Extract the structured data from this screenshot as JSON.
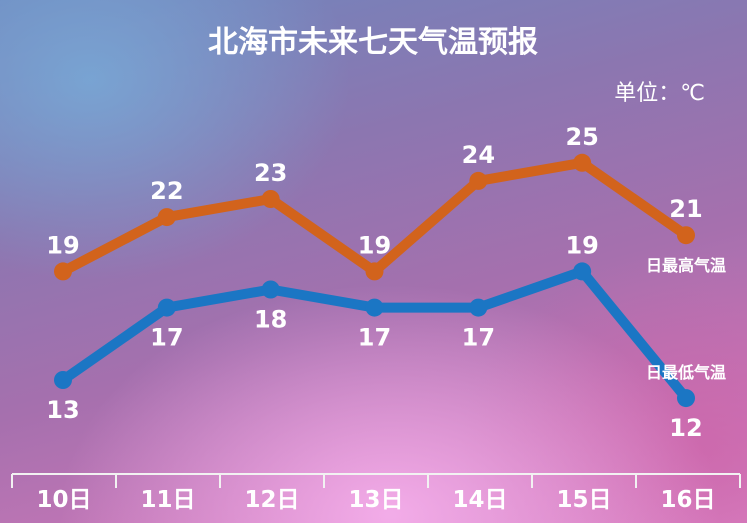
{
  "chart_data": {
    "type": "line",
    "title": "北海市未来七天气温预报",
    "unit_label": "单位：℃",
    "categories": [
      "10日",
      "11日",
      "12日",
      "13日",
      "14日",
      "15日",
      "16日"
    ],
    "series": [
      {
        "name": "日最高气温",
        "values": [
          19,
          22,
          23,
          19,
          24,
          25,
          21
        ],
        "color": "#d2631c"
      },
      {
        "name": "日最低气温",
        "values": [
          13,
          17,
          18,
          17,
          17,
          19,
          12
        ],
        "color": "#1b76c4"
      }
    ],
    "grid": false
  }
}
